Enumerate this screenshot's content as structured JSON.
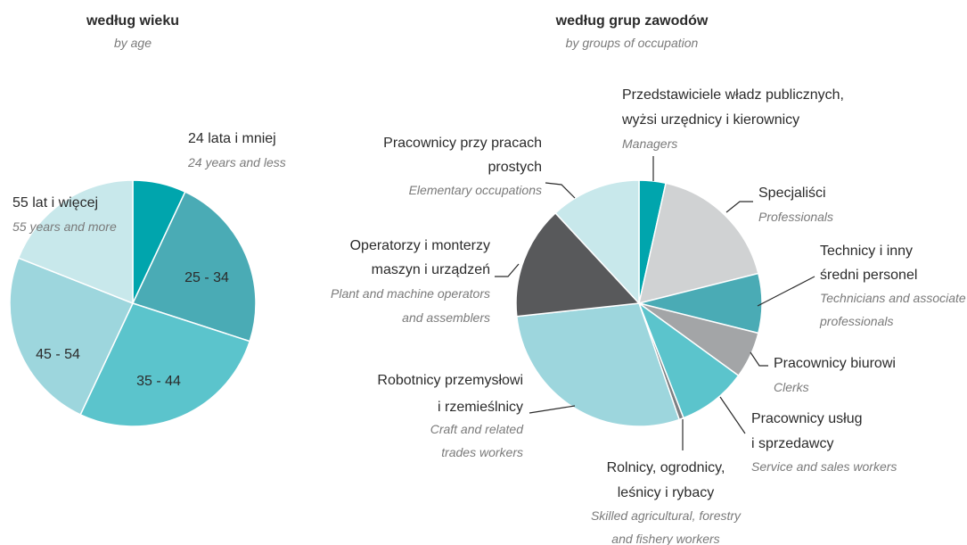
{
  "chart_data": [
    {
      "type": "pie",
      "title": "według wieku",
      "subtitle": "by age",
      "categories": [
        {
          "pl": [
            "24 lata i mniej"
          ],
          "en": [
            "24 years and less"
          ]
        },
        {
          "pl": [
            "25 - 34"
          ]
        },
        {
          "pl": [
            "35 - 44"
          ]
        },
        {
          "pl": [
            "45 - 54"
          ]
        },
        {
          "pl": [
            "55 lat i więcej"
          ],
          "en": [
            "55 years and more"
          ]
        }
      ],
      "values": [
        7,
        23,
        27,
        24,
        19
      ],
      "colors": [
        "#00a5ad",
        "#4aabb5",
        "#5bc4cc",
        "#9dd6dd",
        "#c8e8eb"
      ]
    },
    {
      "type": "pie",
      "title": "według grup zawodów",
      "subtitle": "by groups of occupation",
      "categories": [
        {
          "pl": [
            "Przedstawiciele władz publicznych,",
            "wyżsi urzędnicy i kierownicy"
          ],
          "en": [
            "Managers"
          ]
        },
        {
          "pl": [
            "Specjaliści"
          ],
          "en": [
            "Professionals"
          ]
        },
        {
          "pl": [
            "Technicy i inny",
            "średni personel"
          ],
          "en": [
            "Technicians and associate",
            "professionals"
          ]
        },
        {
          "pl": [
            "Pracownicy biurowi"
          ],
          "en": [
            "Clerks"
          ]
        },
        {
          "pl": [
            "Pracownicy usług",
            "i sprzedawcy"
          ],
          "en": [
            "Service and sales workers"
          ]
        },
        {
          "pl": [
            "Rolnicy, ogrodnicy,",
            "leśnicy i rybacy"
          ],
          "en": [
            "Skilled agricultural, forestry",
            "and fishery workers"
          ]
        },
        {
          "pl": [
            "Robotnicy przemysłowi",
            "i rzemieślnicy"
          ],
          "en": [
            "Craft and related",
            "trades workers"
          ]
        },
        {
          "pl": [
            "Operatorzy i monterzy",
            "maszyn i urządzeń"
          ],
          "en": [
            "Plant and machine operators",
            "and assemblers"
          ]
        },
        {
          "pl": [
            "Pracownicy przy pracach",
            "prostych"
          ],
          "en": [
            "Elementary occupations"
          ]
        }
      ],
      "values": [
        3.5,
        17.6,
        7.8,
        6.1,
        9.1,
        0.6,
        28.6,
        14.8,
        11.9
      ],
      "colors": [
        "#00a5ad",
        "#d0d2d3",
        "#4aabb5",
        "#a3a5a7",
        "#5bc4cc",
        "#7c7f82",
        "#9dd6dd",
        "#58595b",
        "#c8e8eb"
      ]
    }
  ]
}
